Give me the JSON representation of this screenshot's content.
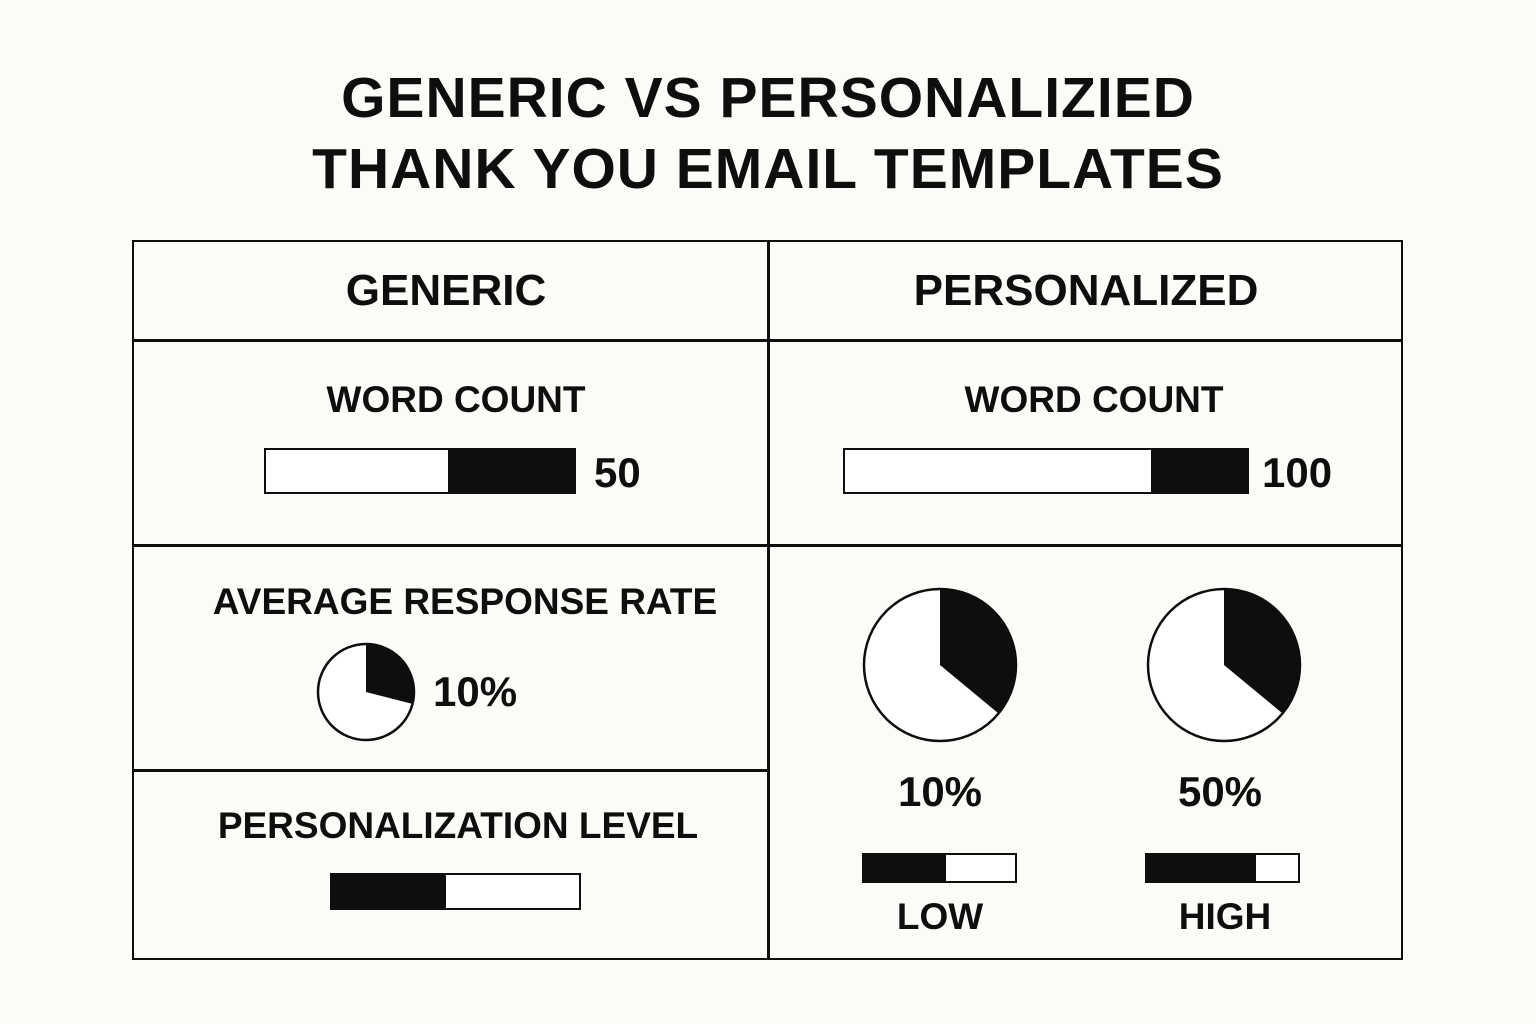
{
  "title": {
    "line1": "GENERIC VS PERSONALIZIED",
    "line2": "THANK YOU EMAIL TEMPLATES"
  },
  "colors": {
    "background": "#fcfbf7",
    "ink": "#0d0f0e",
    "empty": "#ffffff"
  },
  "generic": {
    "header": "GENERIC",
    "word_count": {
      "label": "WORD COUNT",
      "value": "50",
      "bar_fill_fraction": 0.41,
      "fill_side": "right"
    },
    "response_rate": {
      "label": "AVERAGE RESPONSE RATE",
      "value": "10%",
      "pie_fill_fraction": 0.29
    },
    "personalization": {
      "label": "PERSONALIZATION LEVEL",
      "bar_fill_fraction": 0.46,
      "fill_side": "left"
    }
  },
  "personalized": {
    "header": "PERSONALIZED",
    "word_count": {
      "label": "WORD COUNT",
      "value": "100",
      "bar_fill_fraction": 0.24,
      "fill_side": "right"
    },
    "items": [
      {
        "value": "10%",
        "pie_fill_fraction": 0.36,
        "bar_fill_fraction": 0.54,
        "level": "LOW"
      },
      {
        "value": "50%",
        "pie_fill_fraction": 0.36,
        "bar_fill_fraction": 0.72,
        "level": "HIGH"
      }
    ]
  }
}
